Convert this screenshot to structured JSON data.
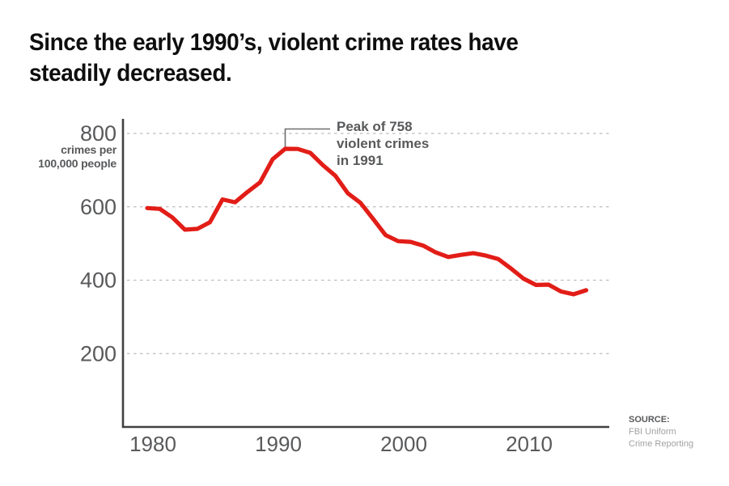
{
  "title": {
    "line1": "Since the early 1990’s, violent crime rates have",
    "line2": "steadily decreased."
  },
  "y_unit_label": "crimes per\n100,000 people",
  "annotation": {
    "text": "Peak of 758\nviolent crimes\nin 1991",
    "peak_year": 1991,
    "peak_value": 758
  },
  "source": {
    "label": "SOURCE:",
    "text": "FBI Uniform\nCrime Reporting"
  },
  "colors": {
    "line": "#e21d17",
    "axis": "#414042",
    "grid": "#bcbcbc",
    "tick_text": "#58595b",
    "callout": "#6d6e71"
  },
  "chart_data": {
    "type": "line",
    "title": "Since the early 1990’s, violent crime rates have steadily decreased.",
    "ylabel": "crimes per 100,000 people",
    "xlabel": "",
    "xlim": [
      1980,
      2015
    ],
    "ylim": [
      0,
      800
    ],
    "xticks": [
      1980,
      1990,
      2000,
      2010
    ],
    "yticks": [
      200,
      400,
      600,
      800
    ],
    "grid": "horizontal-dashed",
    "legend": "none",
    "x": [
      1980,
      1981,
      1982,
      1983,
      1984,
      1985,
      1986,
      1987,
      1988,
      1989,
      1990,
      1991,
      1992,
      1993,
      1994,
      1995,
      1996,
      1997,
      1998,
      1999,
      2000,
      2001,
      2002,
      2003,
      2004,
      2005,
      2006,
      2007,
      2008,
      2009,
      2010,
      2011,
      2012,
      2013,
      2014,
      2015
    ],
    "series": [
      {
        "name": "Violent crime rate per 100,000 people",
        "values": [
          596.6,
          594.3,
          571.1,
          537.7,
          539.9,
          558.1,
          620.1,
          612.5,
          640.6,
          666.9,
          729.6,
          758.2,
          757.7,
          747.1,
          713.6,
          684.5,
          636.6,
          611.0,
          567.6,
          523.0,
          506.5,
          504.5,
          494.4,
          475.8,
          463.2,
          469.0,
          473.6,
          466.9,
          457.5,
          431.9,
          404.5,
          387.1,
          387.8,
          369.1,
          361.6,
          372.6
        ]
      }
    ],
    "annotations": [
      {
        "text": "Peak of 758 violent crimes in 1991",
        "x": 1991,
        "y": 758
      }
    ]
  }
}
